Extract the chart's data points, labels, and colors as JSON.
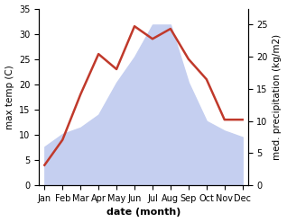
{
  "months": [
    "Jan",
    "Feb",
    "Mar",
    "Apr",
    "May",
    "Jun",
    "Jul",
    "Aug",
    "Sep",
    "Oct",
    "Nov",
    "Dec"
  ],
  "temperature": [
    4.0,
    9.0,
    18.0,
    26.0,
    23.0,
    31.5,
    29.0,
    31.0,
    25.0,
    21.0,
    13.0,
    13.0
  ],
  "precipitation": [
    6.0,
    8.0,
    9.0,
    11.0,
    16.0,
    20.0,
    25.0,
    25.0,
    16.0,
    10.0,
    8.5,
    7.5
  ],
  "temp_color": "#c0392b",
  "precip_fill_color": "#c5cff0",
  "temp_ylim": [
    0,
    35
  ],
  "precip_ylim": [
    0,
    27.5
  ],
  "temp_yticks": [
    0,
    5,
    10,
    15,
    20,
    25,
    30,
    35
  ],
  "precip_yticks": [
    0,
    5,
    10,
    15,
    20,
    25
  ],
  "xlabel": "date (month)",
  "ylabel_left": "max temp (C)",
  "ylabel_right": "med. precipitation (kg/m2)",
  "bg_color": "#ffffff",
  "temp_linewidth": 1.8,
  "xlabel_fontsize": 8,
  "ylabel_fontsize": 7.5,
  "tick_fontsize": 7
}
